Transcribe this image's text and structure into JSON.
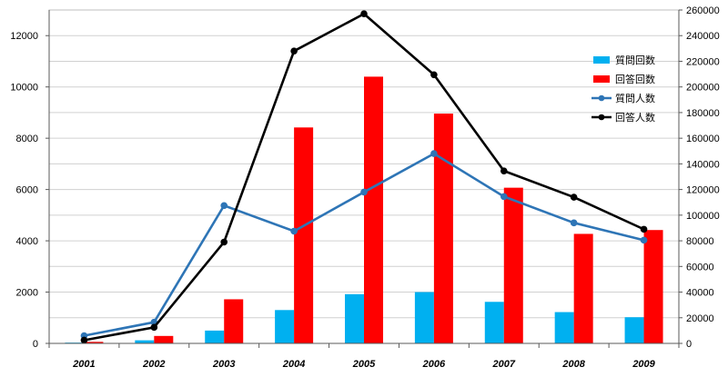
{
  "chart_data": {
    "type": "bar",
    "categories": [
      "2001",
      "2002",
      "2003",
      "2004",
      "2005",
      "2006",
      "2007",
      "2008",
      "2009"
    ],
    "series": [
      {
        "name": "質問回数",
        "type": "bar",
        "axis": "left",
        "color": "#00b0f0",
        "values": [
          30,
          120,
          500,
          1300,
          1920,
          2000,
          1620,
          1220,
          1020
        ]
      },
      {
        "name": "回答回数",
        "type": "bar",
        "axis": "left",
        "color": "#ff0000",
        "values": [
          60,
          290,
          1720,
          8420,
          10400,
          8960,
          6070,
          4270,
          4420
        ]
      },
      {
        "name": "質問人数",
        "type": "line",
        "axis": "right",
        "color": "#2e75b6",
        "values": [
          6000,
          16500,
          107500,
          87500,
          118000,
          148000,
          114500,
          94000,
          80500
        ]
      },
      {
        "name": "回答人数",
        "type": "line",
        "axis": "right",
        "color": "#000000",
        "values": [
          2500,
          12500,
          79000,
          228000,
          257000,
          209500,
          134500,
          114000,
          89000
        ]
      }
    ],
    "y_left": {
      "range": [
        0,
        13000
      ],
      "ticks": [
        0,
        2000,
        4000,
        6000,
        8000,
        10000,
        12000
      ]
    },
    "y_right": {
      "range": [
        0,
        260000
      ],
      "ticks": [
        0,
        20000,
        40000,
        60000,
        80000,
        100000,
        120000,
        140000,
        160000,
        180000,
        200000,
        220000,
        240000,
        260000
      ]
    },
    "grid": true,
    "legend": "top-right",
    "title": "",
    "xlabel": "",
    "ylabel": ""
  }
}
